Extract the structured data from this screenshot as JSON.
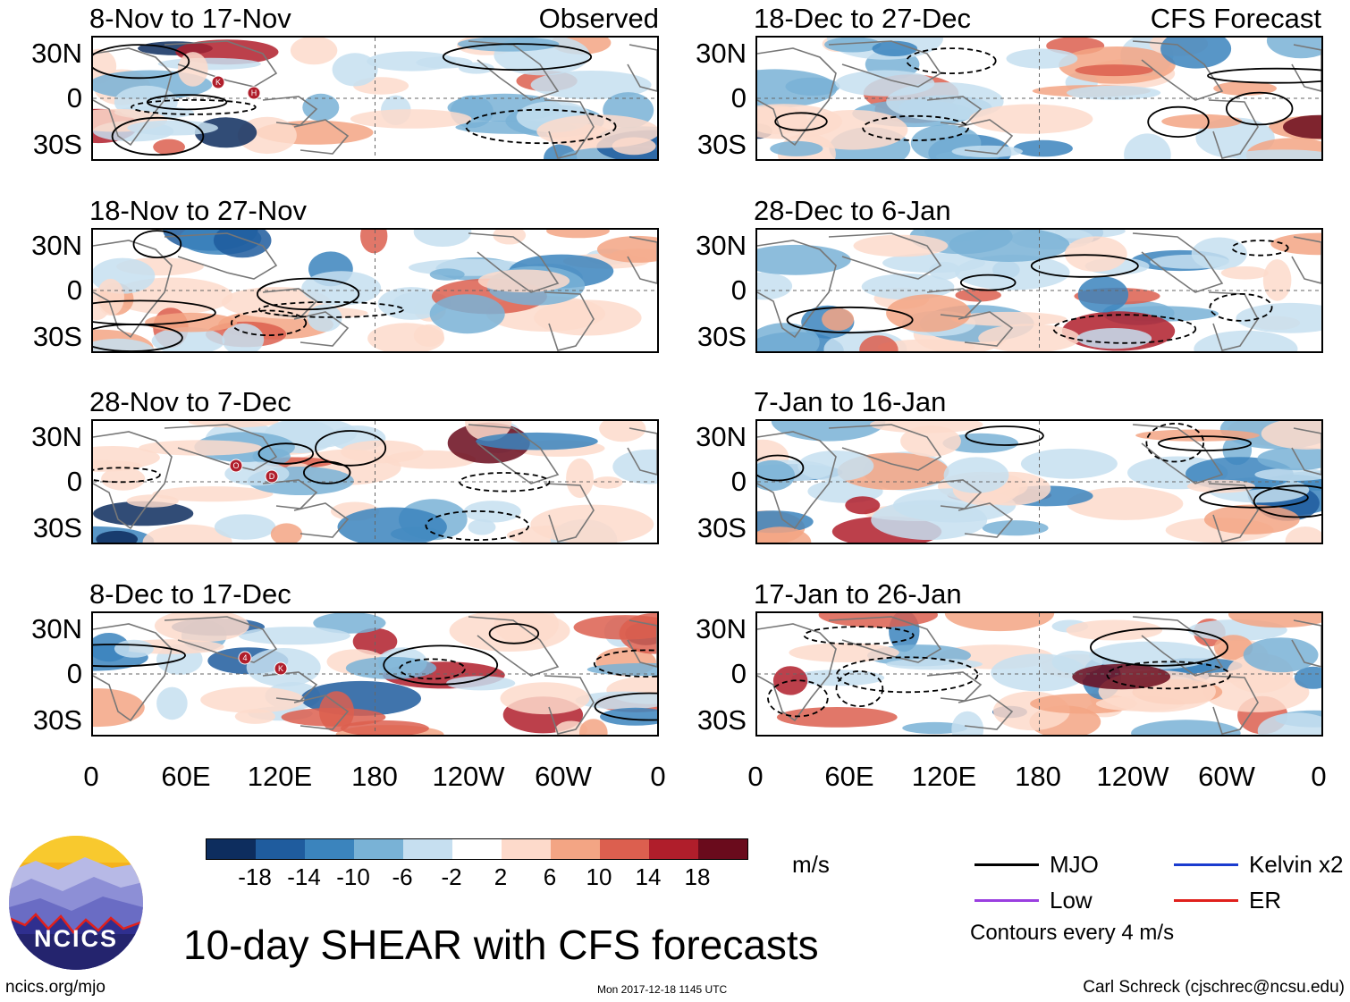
{
  "left_tag": "Observed",
  "right_tag": "CFS Forecast",
  "panels": [
    {
      "title": "8-Nov to 17-Nov"
    },
    {
      "title": "18-Nov to 27-Nov"
    },
    {
      "title": "28-Nov to 7-Dec"
    },
    {
      "title": "8-Dec to 17-Dec"
    },
    {
      "title": "18-Dec to 27-Dec"
    },
    {
      "title": "28-Dec to 6-Jan"
    },
    {
      "title": "7-Jan to 16-Jan"
    },
    {
      "title": "17-Jan to 26-Jan"
    }
  ],
  "lat_labels": [
    "30N",
    "0",
    "30S"
  ],
  "lon_labels": [
    "0",
    "60E",
    "120E",
    "180",
    "120W",
    "60W",
    "0"
  ],
  "colorbar": {
    "colors": [
      "#0d2d5e",
      "#1f5c9e",
      "#3b84bd",
      "#79b2d6",
      "#c6dff0",
      "#ffffff",
      "#fddacb",
      "#f3a584",
      "#dc5f4f",
      "#b01e2b",
      "#6a0b1c"
    ],
    "labels": [
      "-18",
      "-14",
      "-10",
      "-6",
      "-2",
      "2",
      "6",
      "10",
      "14",
      "18"
    ],
    "units": "m/s"
  },
  "legend": [
    {
      "name": "MJO",
      "color": "#000000"
    },
    {
      "name": "Kelvin x2",
      "color": "#1a3ccf"
    },
    {
      "name": "Low",
      "color": "#9a3fe0"
    },
    {
      "name": "ER",
      "color": "#e0201c"
    }
  ],
  "contour_note": "Contours every 4 m/s",
  "main_title": "10-day SHEAR with CFS forecasts",
  "logo_text": "NCICS",
  "footer": {
    "url": "ncics.org/mjo",
    "timestamp": "Mon 2017-12-18 1145 UTC",
    "credit": "Carl Schreck (cjschrec@ncsu.edu)"
  },
  "storm_markers": [
    {
      "panel": 0,
      "labels": [
        "K",
        "H"
      ]
    },
    {
      "panel": 2,
      "labels": [
        "O",
        "D"
      ]
    },
    {
      "panel": 3,
      "labels": [
        "4",
        "K"
      ]
    }
  ]
}
